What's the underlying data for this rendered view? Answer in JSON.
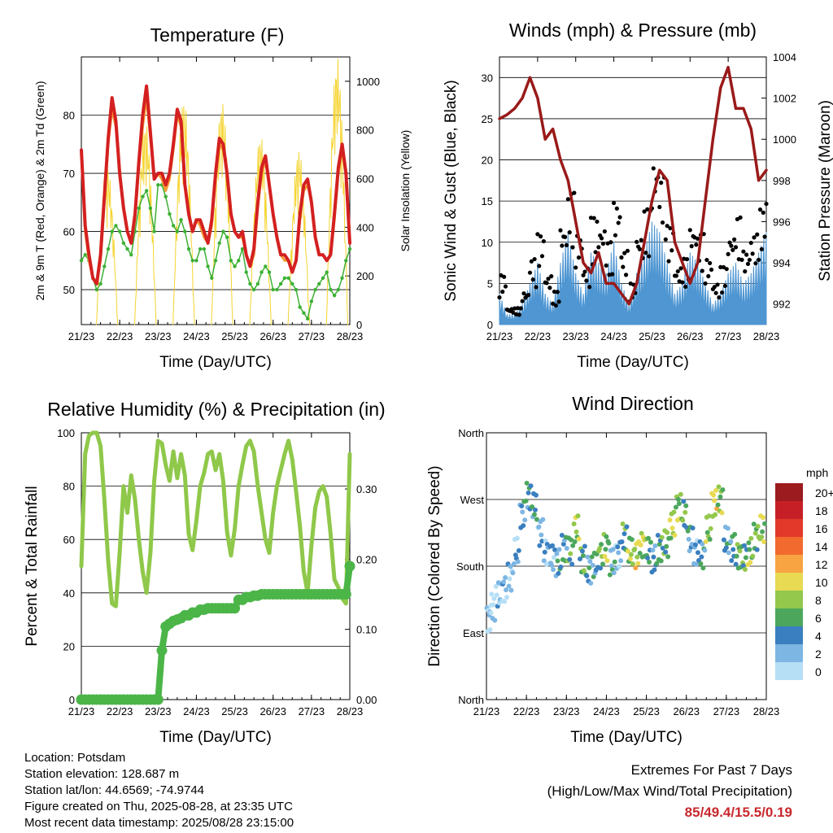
{
  "info": {
    "location": "Location: Potsdam",
    "elevation": "Station elevation: 128.687 m",
    "latlon": "Station lat/lon: 44.6569; -74.9744",
    "created": "Figure created on Thu, 2025-08-28, at 23:35 UTC",
    "recent": "Most recent data timestamp: 2025/08/28 23:15:00"
  },
  "extremes": {
    "title": "Extremes For Past 7 Days",
    "subtitle": "(High/Low/Max Wind/Total Precipitation)",
    "values": "85/49.4/15.5/0.19",
    "color": "#c8282d"
  },
  "chart_data": [
    {
      "type": "line",
      "title": "Temperature (F)",
      "xlabel": "Time (Day/UTC)",
      "ylabel": "2m & 9m T (Red, Orange) & 2m Td (Green)",
      "y2label": "Solar Insolation (Yellow)",
      "x_ticks": [
        "21/23",
        "22/23",
        "23/23",
        "24/23",
        "25/23",
        "26/23",
        "27/23",
        "28/23"
      ],
      "ylim": [
        44,
        90
      ],
      "yticks": [
        50,
        60,
        70,
        80
      ],
      "y2lim": [
        0,
        1100
      ],
      "y2ticks": [
        0,
        200,
        400,
        600,
        800,
        1000
      ],
      "x": [
        0,
        0.1,
        0.2,
        0.3,
        0.4,
        0.5,
        0.6,
        0.7,
        0.8,
        0.9,
        1,
        1.1,
        1.2,
        1.3,
        1.4,
        1.5,
        1.6,
        1.7,
        1.8,
        1.9,
        2,
        2.1,
        2.2,
        2.3,
        2.4,
        2.5,
        2.6,
        2.7,
        2.8,
        2.9,
        3,
        3.1,
        3.2,
        3.3,
        3.4,
        3.5,
        3.6,
        3.7,
        3.8,
        3.9,
        4,
        4.1,
        4.2,
        4.3,
        4.4,
        4.5,
        4.6,
        4.7,
        4.8,
        4.9,
        5,
        5.1,
        5.2,
        5.3,
        5.4,
        5.5,
        5.6,
        5.7,
        5.8,
        5.9,
        6,
        6.1,
        6.2,
        6.3,
        6.4,
        6.5,
        6.6,
        6.7,
        6.8,
        6.9,
        7
      ],
      "series": [
        {
          "name": "2m T",
          "color": "#d42020",
          "values": [
            74,
            61,
            56,
            52,
            51,
            56,
            66,
            76,
            83,
            79,
            70,
            64,
            60,
            58,
            63,
            72,
            80,
            85,
            77,
            69,
            70,
            70,
            68,
            70,
            75,
            81,
            79,
            68,
            63,
            60,
            62,
            62,
            60,
            58,
            62,
            70,
            76,
            75,
            70,
            63,
            60,
            59,
            60,
            56,
            54,
            57,
            65,
            71,
            73,
            68,
            63,
            59,
            56,
            56,
            55,
            53,
            55,
            63,
            68,
            69,
            65,
            59,
            56,
            56,
            55,
            56,
            63,
            71,
            75,
            70,
            58
          ]
        },
        {
          "name": "9m T",
          "color": "#f59a32",
          "values": [
            74,
            60,
            55,
            52,
            51,
            55,
            65,
            75,
            81,
            78,
            70,
            64,
            60,
            58,
            62,
            71,
            78,
            83,
            76,
            69,
            70,
            69,
            67,
            69,
            74,
            80,
            78,
            68,
            63,
            60,
            62,
            61,
            59,
            58,
            61,
            69,
            75,
            74,
            70,
            63,
            60,
            59,
            59,
            56,
            54,
            56,
            64,
            70,
            72,
            68,
            63,
            59,
            56,
            55,
            55,
            53,
            55,
            62,
            67,
            68,
            65,
            59,
            56,
            56,
            55,
            56,
            62,
            70,
            74,
            70,
            58
          ]
        },
        {
          "name": "2m Td",
          "color": "#3cb034",
          "values": [
            55,
            56,
            55,
            52,
            50,
            51,
            54,
            57,
            60,
            61,
            60,
            58,
            57,
            56,
            60,
            64,
            66,
            67,
            64,
            60,
            68,
            68,
            66,
            63,
            61,
            60,
            62,
            60,
            57,
            55,
            55,
            57,
            57,
            54,
            52,
            55,
            58,
            60,
            59,
            55,
            54,
            55,
            57,
            53,
            51,
            50,
            51,
            53,
            54,
            53,
            50,
            50,
            51,
            52,
            52,
            51,
            50,
            47,
            46,
            45,
            48,
            50,
            51,
            52,
            53,
            50,
            49,
            50,
            52,
            55,
            57
          ]
        }
      ],
      "solar": {
        "name": "Solar Insolation",
        "color": "#f5d430",
        "peaks": [
          660,
          840,
          930,
          920,
          780,
          720,
          1100
        ],
        "noon_offset": 0.67
      }
    },
    {
      "type": "line",
      "title": "Winds (mph) & Pressure (mb)",
      "xlabel": "Time (Day/UTC)",
      "ylabel": "Sonic Wind & Gust (Blue, Black)",
      "y2label": "Station Pressure (Maroon)",
      "x_ticks": [
        "21/23",
        "22/23",
        "23/23",
        "24/23",
        "25/23",
        "26/23",
        "27/23",
        "28/23"
      ],
      "ylim": [
        0,
        32.5
      ],
      "yticks": [
        0,
        5,
        10,
        15,
        20,
        25,
        30
      ],
      "y2lim": [
        991.0,
        1004.0
      ],
      "y2ticks": [
        992,
        994,
        996,
        998,
        1000,
        1002,
        1004
      ],
      "x": [
        0,
        0.2,
        0.4,
        0.6,
        0.8,
        1,
        1.2,
        1.4,
        1.6,
        1.8,
        2,
        2.2,
        2.4,
        2.6,
        2.8,
        3,
        3.2,
        3.4,
        3.6,
        3.8,
        4,
        4.2,
        4.4,
        4.6,
        4.8,
        5,
        5.2,
        5.4,
        5.6,
        5.8,
        6,
        6.2,
        6.4,
        6.6,
        6.8,
        7
      ],
      "series": [
        {
          "name": "Sonic Wind",
          "color": "#4f96d2",
          "values": [
            3,
            1,
            1,
            2,
            4,
            6,
            3,
            2,
            6,
            9,
            5,
            3,
            7,
            6,
            5,
            8,
            4,
            2,
            5,
            7,
            10,
            9,
            6,
            3,
            4,
            7,
            6,
            4,
            2,
            3,
            5,
            6,
            4,
            5,
            7,
            9
          ]
        },
        {
          "name": "Gust",
          "color": "#000000",
          "values": [
            6,
            2,
            2,
            4,
            8,
            11,
            6,
            4,
            12,
            16,
            11,
            7,
            13,
            12,
            10,
            15,
            9,
            5,
            11,
            14,
            20,
            18,
            12,
            7,
            8,
            12,
            11,
            8,
            5,
            7,
            11,
            13,
            9,
            11,
            14,
            16
          ]
        },
        {
          "name": "Station Pressure",
          "color": "#9a1a1a",
          "values": [
            1001.0,
            1001.2,
            1001.5,
            1002.0,
            1003.0,
            1002.0,
            1000.0,
            1000.5,
            999.0,
            998.0,
            996.0,
            994.0,
            993.5,
            994.5,
            993.0,
            993.0,
            992.5,
            992.0,
            993.0,
            995.0,
            997.0,
            998.5,
            998.0,
            995.0,
            994.0,
            993.0,
            994.0,
            997.0,
            1000.0,
            1002.5,
            1003.5,
            1001.5,
            1001.5,
            1000.5,
            998.0,
            998.5
          ]
        }
      ]
    },
    {
      "type": "line",
      "title": "Relative Humidity (%) & Precipitation (in)",
      "xlabel": "Time (Day/UTC)",
      "ylabel": "Percent & Total Rainfall",
      "x_ticks": [
        "21/23",
        "22/23",
        "23/23",
        "24/23",
        "25/23",
        "26/23",
        "27/23",
        "28/23"
      ],
      "ylim": [
        0,
        100
      ],
      "yticks": [
        0,
        20,
        40,
        60,
        80,
        100
      ],
      "y2lim": [
        0,
        0.38
      ],
      "y2ticks": [
        "0.00",
        "0.10",
        "0.20",
        "0.30"
      ],
      "x": [
        0,
        0.1,
        0.2,
        0.3,
        0.4,
        0.5,
        0.6,
        0.7,
        0.8,
        0.9,
        1,
        1.1,
        1.2,
        1.3,
        1.4,
        1.5,
        1.6,
        1.7,
        1.8,
        1.9,
        2,
        2.1,
        2.2,
        2.3,
        2.4,
        2.5,
        2.6,
        2.7,
        2.8,
        2.9,
        3,
        3.1,
        3.2,
        3.3,
        3.4,
        3.5,
        3.6,
        3.7,
        3.8,
        3.9,
        4,
        4.1,
        4.2,
        4.3,
        4.4,
        4.5,
        4.6,
        4.7,
        4.8,
        4.9,
        5,
        5.1,
        5.2,
        5.3,
        5.4,
        5.5,
        5.6,
        5.7,
        5.8,
        5.9,
        6,
        6.1,
        6.2,
        6.3,
        6.4,
        6.5,
        6.6,
        6.7,
        6.8,
        6.9,
        7
      ],
      "series": [
        {
          "name": "Relative Humidity",
          "color": "#8fc84a",
          "values": [
            50,
            92,
            99,
            100,
            100,
            95,
            75,
            52,
            36,
            35,
            55,
            80,
            70,
            84,
            75,
            60,
            48,
            40,
            55,
            82,
            97,
            96,
            88,
            82,
            93,
            83,
            92,
            84,
            62,
            56,
            67,
            80,
            85,
            92,
            93,
            86,
            92,
            82,
            63,
            54,
            64,
            80,
            88,
            95,
            97,
            93,
            80,
            70,
            60,
            55,
            70,
            80,
            86,
            92,
            97,
            90,
            78,
            65,
            48,
            40,
            58,
            72,
            78,
            80,
            76,
            62,
            45,
            42,
            38,
            36,
            92
          ]
        },
        {
          "name": "Total Precipitation",
          "color": "#4bb548",
          "values": [
            0,
            0,
            0,
            0,
            0,
            0,
            0,
            0,
            0,
            0,
            0,
            0,
            0,
            0,
            0,
            0,
            0,
            0,
            0,
            0,
            0,
            0.07,
            0.104,
            0.108,
            0.112,
            0.114,
            0.116,
            0.12,
            0.12,
            0.124,
            0.124,
            0.128,
            0.128,
            0.13,
            0.13,
            0.13,
            0.13,
            0.13,
            0.13,
            0.13,
            0.13,
            0.142,
            0.142,
            0.146,
            0.146,
            0.148,
            0.148,
            0.15,
            0.15,
            0.15,
            0.15,
            0.15,
            0.15,
            0.15,
            0.15,
            0.15,
            0.15,
            0.15,
            0.15,
            0.15,
            0.15,
            0.15,
            0.15,
            0.15,
            0.15,
            0.15,
            0.15,
            0.15,
            0.15,
            0.15,
            0.19
          ]
        }
      ]
    },
    {
      "type": "scatter",
      "title": "Wind Direction",
      "xlabel": "Time (Day/UTC)",
      "ylabel": "Direction (Colored By Speed)",
      "x_ticks": [
        "21/23",
        "22/23",
        "23/23",
        "24/23",
        "25/23",
        "26/23",
        "27/23",
        "28/23"
      ],
      "ylim": [
        0,
        360
      ],
      "yticks": [
        "North",
        "East",
        "South",
        "West",
        "North"
      ],
      "colorbar": {
        "title": "mph",
        "labels": [
          "20+",
          "18",
          "16",
          "14",
          "12",
          "10",
          "8",
          "6",
          "4",
          "2",
          "0"
        ],
        "colors": [
          "#9b1b1e",
          "#c62026",
          "#e2392b",
          "#f26a2e",
          "#f8a443",
          "#e8da52",
          "#93c84c",
          "#4ca75d",
          "#3a7fbf",
          "#7db6e3",
          "#b6dff5"
        ]
      },
      "x": [
        0.05,
        0.15,
        0.3,
        0.45,
        0.6,
        0.75,
        0.9,
        1.05,
        1.2,
        1.35,
        1.5,
        1.65,
        1.8,
        1.95,
        2.1,
        2.25,
        2.4,
        2.55,
        2.7,
        2.85,
        3.0,
        3.15,
        3.3,
        3.45,
        3.6,
        3.75,
        3.9,
        4.05,
        4.2,
        4.35,
        4.5,
        4.65,
        4.8,
        4.95,
        5.1,
        5.25,
        5.4,
        5.55,
        5.7,
        5.85,
        6.0,
        6.15,
        6.3,
        6.45,
        6.6,
        6.75,
        6.9
      ],
      "directions": [
        110,
        125,
        140,
        150,
        165,
        200,
        250,
        275,
        260,
        225,
        200,
        190,
        185,
        205,
        200,
        230,
        190,
        175,
        180,
        195,
        205,
        185,
        195,
        220,
        200,
        195,
        210,
        200,
        190,
        205,
        210,
        235,
        260,
        250,
        215,
        200,
        195,
        230,
        265,
        270,
        215,
        205,
        195,
        190,
        200,
        220,
        230
      ],
      "speeds": [
        1,
        1,
        2,
        2,
        2,
        3,
        4,
        5,
        5,
        3,
        2,
        3,
        4,
        5,
        6,
        8,
        6,
        4,
        5,
        7,
        8,
        4,
        3,
        6,
        8,
        10,
        9,
        6,
        4,
        6,
        7,
        9,
        8,
        6,
        4,
        3,
        5,
        8,
        10,
        8,
        4,
        5,
        7,
        6,
        8,
        7,
        9
      ]
    }
  ]
}
